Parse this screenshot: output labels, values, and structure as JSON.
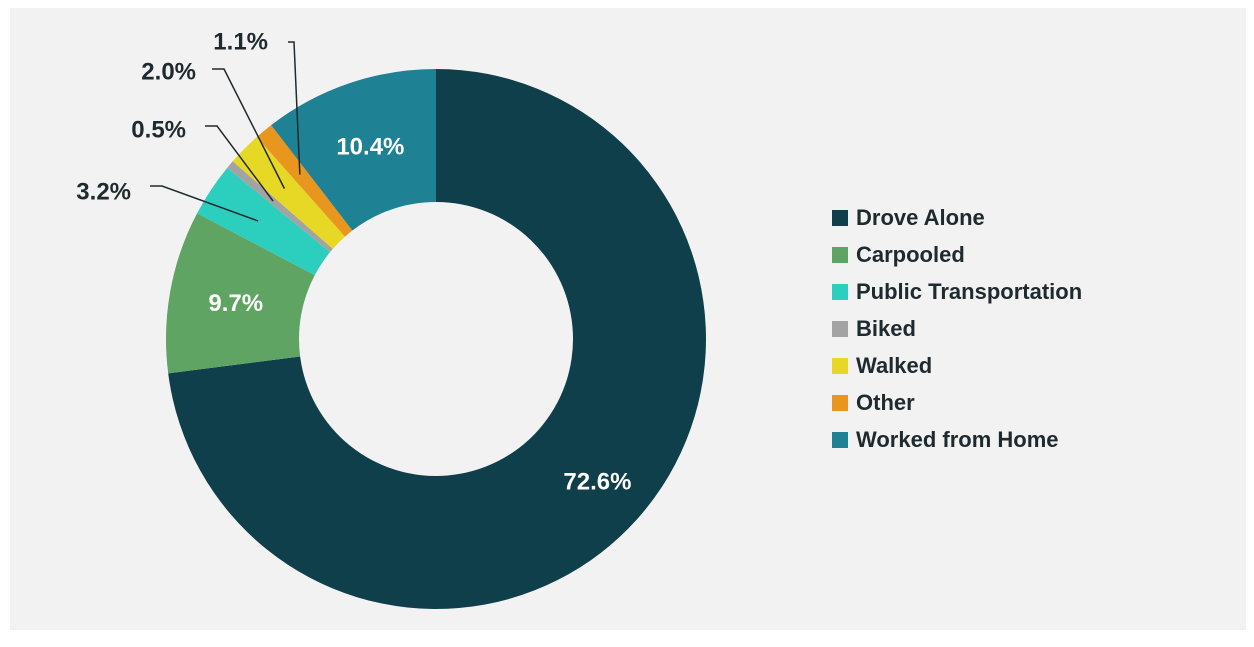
{
  "chart_data": {
    "type": "pie",
    "donut": true,
    "categories": [
      "Drove Alone",
      "Carpooled",
      "Public Transportation",
      "Biked",
      "Walked",
      "Other",
      "Worked from Home"
    ],
    "values": [
      72.6,
      9.7,
      3.2,
      0.5,
      2.0,
      1.1,
      10.4
    ],
    "data_labels": [
      "72.6%",
      "9.7%",
      "3.2%",
      "0.5%",
      "2.0%",
      "1.1%",
      "10.4%"
    ],
    "colors": [
      "#0f3f4a",
      "#5fa463",
      "#2ccfbd",
      "#a3a3a3",
      "#e8d826",
      "#e8961e",
      "#1e8294"
    ],
    "title": "",
    "legend_position": "right",
    "background": "#f2f2f2"
  }
}
